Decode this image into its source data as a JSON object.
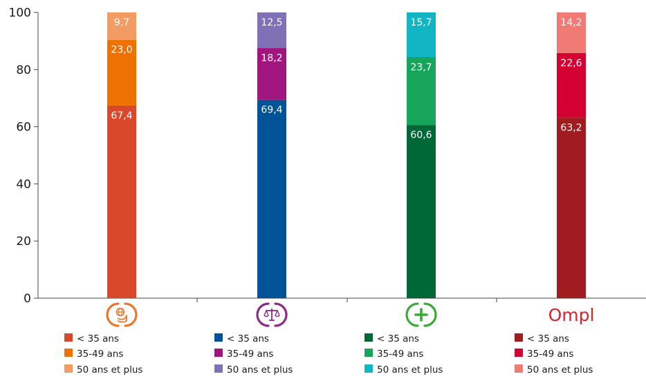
{
  "chart_data": {
    "type": "bar",
    "stacked": true,
    "ylim": [
      0,
      100
    ],
    "yticks": [
      0,
      20,
      40,
      60,
      80,
      100
    ],
    "groups": [
      {
        "icon": "globe-hand-icon",
        "accent": "#e8762d",
        "series": [
          {
            "name": "< 35 ans",
            "value": 67.4,
            "label": "67,4",
            "color": "#d9482b"
          },
          {
            "name": "35-49 ans",
            "value": 23.0,
            "label": "23,0",
            "color": "#ee7203"
          },
          {
            "name": "50 ans et plus",
            "value": 9.7,
            "label": "9,7",
            "color": "#f29b62"
          }
        ]
      },
      {
        "icon": "scales-of-justice-icon",
        "accent": "#8b2a86",
        "series": [
          {
            "name": "< 35 ans",
            "value": 69.4,
            "label": "69,4",
            "color": "#005397"
          },
          {
            "name": "35-49 ans",
            "value": 18.2,
            "label": "18,2",
            "color": "#a1157f"
          },
          {
            "name": "50 ans et plus",
            "value": 12.5,
            "label": "12,5",
            "color": "#8070b6"
          }
        ]
      },
      {
        "icon": "medical-cross-icon",
        "accent": "#3aa935",
        "series": [
          {
            "name": "< 35 ans",
            "value": 60.6,
            "label": "60,6",
            "color": "#006837"
          },
          {
            "name": "35-49 ans",
            "value": 23.7,
            "label": "23,7",
            "color": "#17a55c"
          },
          {
            "name": "50 ans et plus",
            "value": 15.7,
            "label": "15,7",
            "color": "#12b5c4"
          }
        ]
      },
      {
        "icon": "ompl-logo",
        "logo_text": "Ompl",
        "accent": "#d8232a",
        "series": [
          {
            "name": "< 35 ans",
            "value": 63.2,
            "label": "63,2",
            "color": "#a01c20"
          },
          {
            "name": "35-49 ans",
            "value": 22.6,
            "label": "22,6",
            "color": "#d50032"
          },
          {
            "name": "50 ans et plus",
            "value": 14.2,
            "label": "14,2",
            "color": "#f07a74"
          }
        ]
      }
    ]
  }
}
